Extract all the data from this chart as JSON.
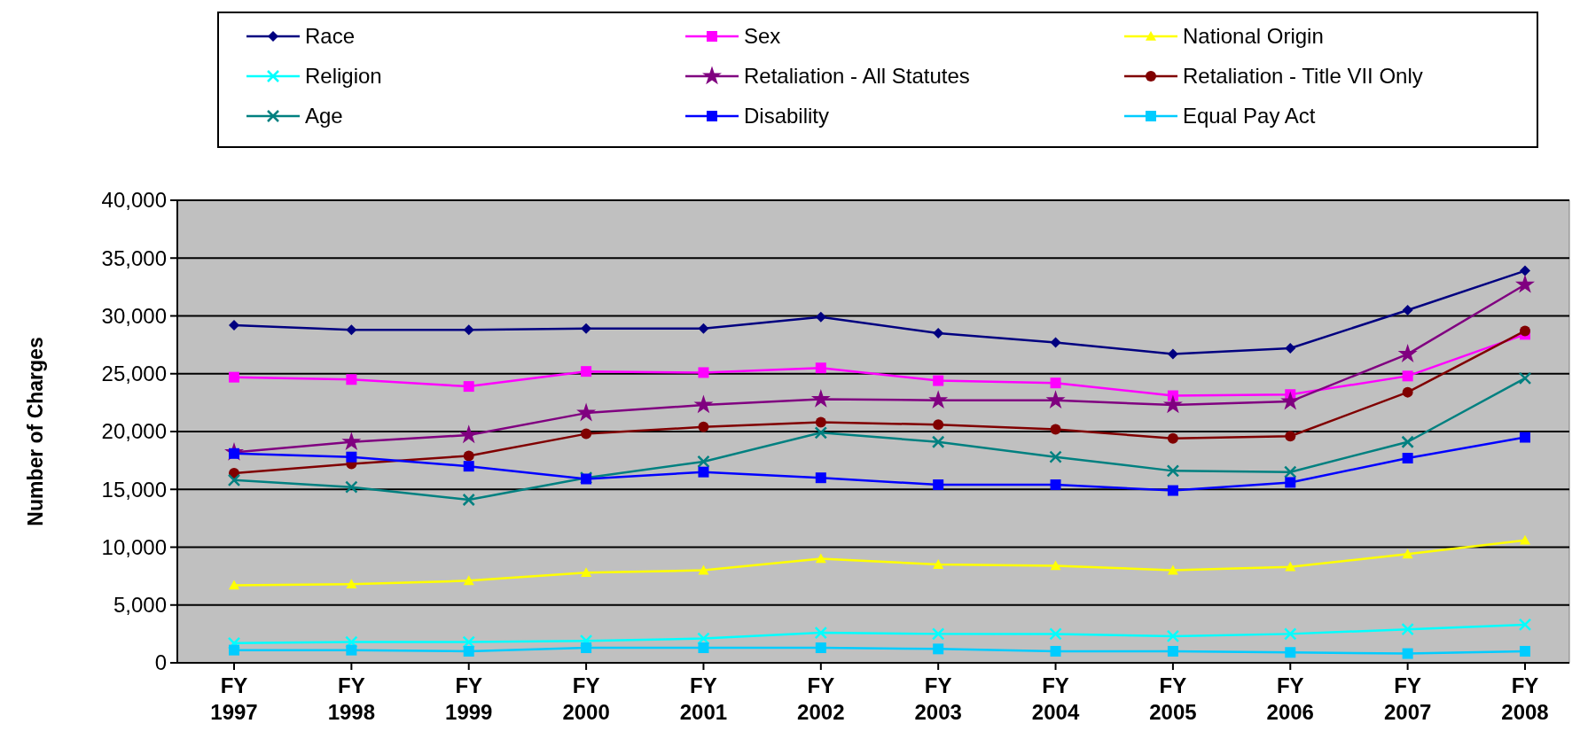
{
  "chart_data": {
    "type": "line",
    "ylabel": "Number of Charges",
    "categories": [
      "FY 1997",
      "FY 1998",
      "FY 1999",
      "FY 2000",
      "FY 2001",
      "FY 2002",
      "FY 2003",
      "FY 2004",
      "FY 2005",
      "FY 2006",
      "FY 2007",
      "FY 2008"
    ],
    "ylim": [
      0,
      40000
    ],
    "yticks": [
      {
        "value": 0,
        "label": "0"
      },
      {
        "value": 5000,
        "label": "5,000"
      },
      {
        "value": 10000,
        "label": "10,000"
      },
      {
        "value": 15000,
        "label": "15,000"
      },
      {
        "value": 20000,
        "label": "20,000"
      },
      {
        "value": 25000,
        "label": "25,000"
      },
      {
        "value": 30000,
        "label": "30,000"
      },
      {
        "value": 35000,
        "label": "35,000"
      },
      {
        "value": 40000,
        "label": "40,000"
      }
    ],
    "grid": "y",
    "legend": "top",
    "series": [
      {
        "name": "Race",
        "color": "#000080",
        "marker": "diamond",
        "values": [
          29200,
          28800,
          28800,
          28900,
          28900,
          29900,
          28500,
          27700,
          26700,
          27200,
          30500,
          33900
        ]
      },
      {
        "name": "Sex",
        "color": "#ff00ff",
        "marker": "square",
        "values": [
          24700,
          24500,
          23900,
          25200,
          25100,
          25500,
          24400,
          24200,
          23100,
          23200,
          24800,
          28400
        ]
      },
      {
        "name": "National Origin",
        "color": "#ffff00",
        "marker": "triangle",
        "values": [
          6700,
          6800,
          7100,
          7800,
          8000,
          9000,
          8500,
          8400,
          8000,
          8300,
          9400,
          10600
        ]
      },
      {
        "name": "Religion",
        "color": "#00ffff",
        "marker": "cross",
        "values": [
          1700,
          1800,
          1800,
          1900,
          2100,
          2600,
          2500,
          2500,
          2300,
          2500,
          2900,
          3300
        ]
      },
      {
        "name": "Retaliation - All Statutes",
        "color": "#800080",
        "marker": "star",
        "values": [
          18200,
          19100,
          19700,
          21600,
          22300,
          22800,
          22700,
          22700,
          22300,
          22600,
          26700,
          32700
        ]
      },
      {
        "name": "Retaliation - Title VII Only",
        "color": "#800000",
        "marker": "circle",
        "values": [
          16400,
          17200,
          17900,
          19800,
          20400,
          20800,
          20600,
          20200,
          19400,
          19600,
          23400,
          28700
        ]
      },
      {
        "name": "Age",
        "color": "#008080",
        "marker": "cross",
        "values": [
          15800,
          15200,
          14100,
          16000,
          17400,
          19900,
          19100,
          17800,
          16600,
          16500,
          19100,
          24600
        ]
      },
      {
        "name": "Disability",
        "color": "#0000ff",
        "marker": "square",
        "values": [
          18100,
          17800,
          17000,
          15900,
          16500,
          16000,
          15400,
          15400,
          14900,
          15600,
          17700,
          19500
        ]
      },
      {
        "name": "Equal Pay Act",
        "color": "#00ccff",
        "marker": "square",
        "values": [
          1100,
          1100,
          1000,
          1300,
          1300,
          1300,
          1200,
          1000,
          1000,
          900,
          800,
          1000
        ]
      }
    ]
  }
}
